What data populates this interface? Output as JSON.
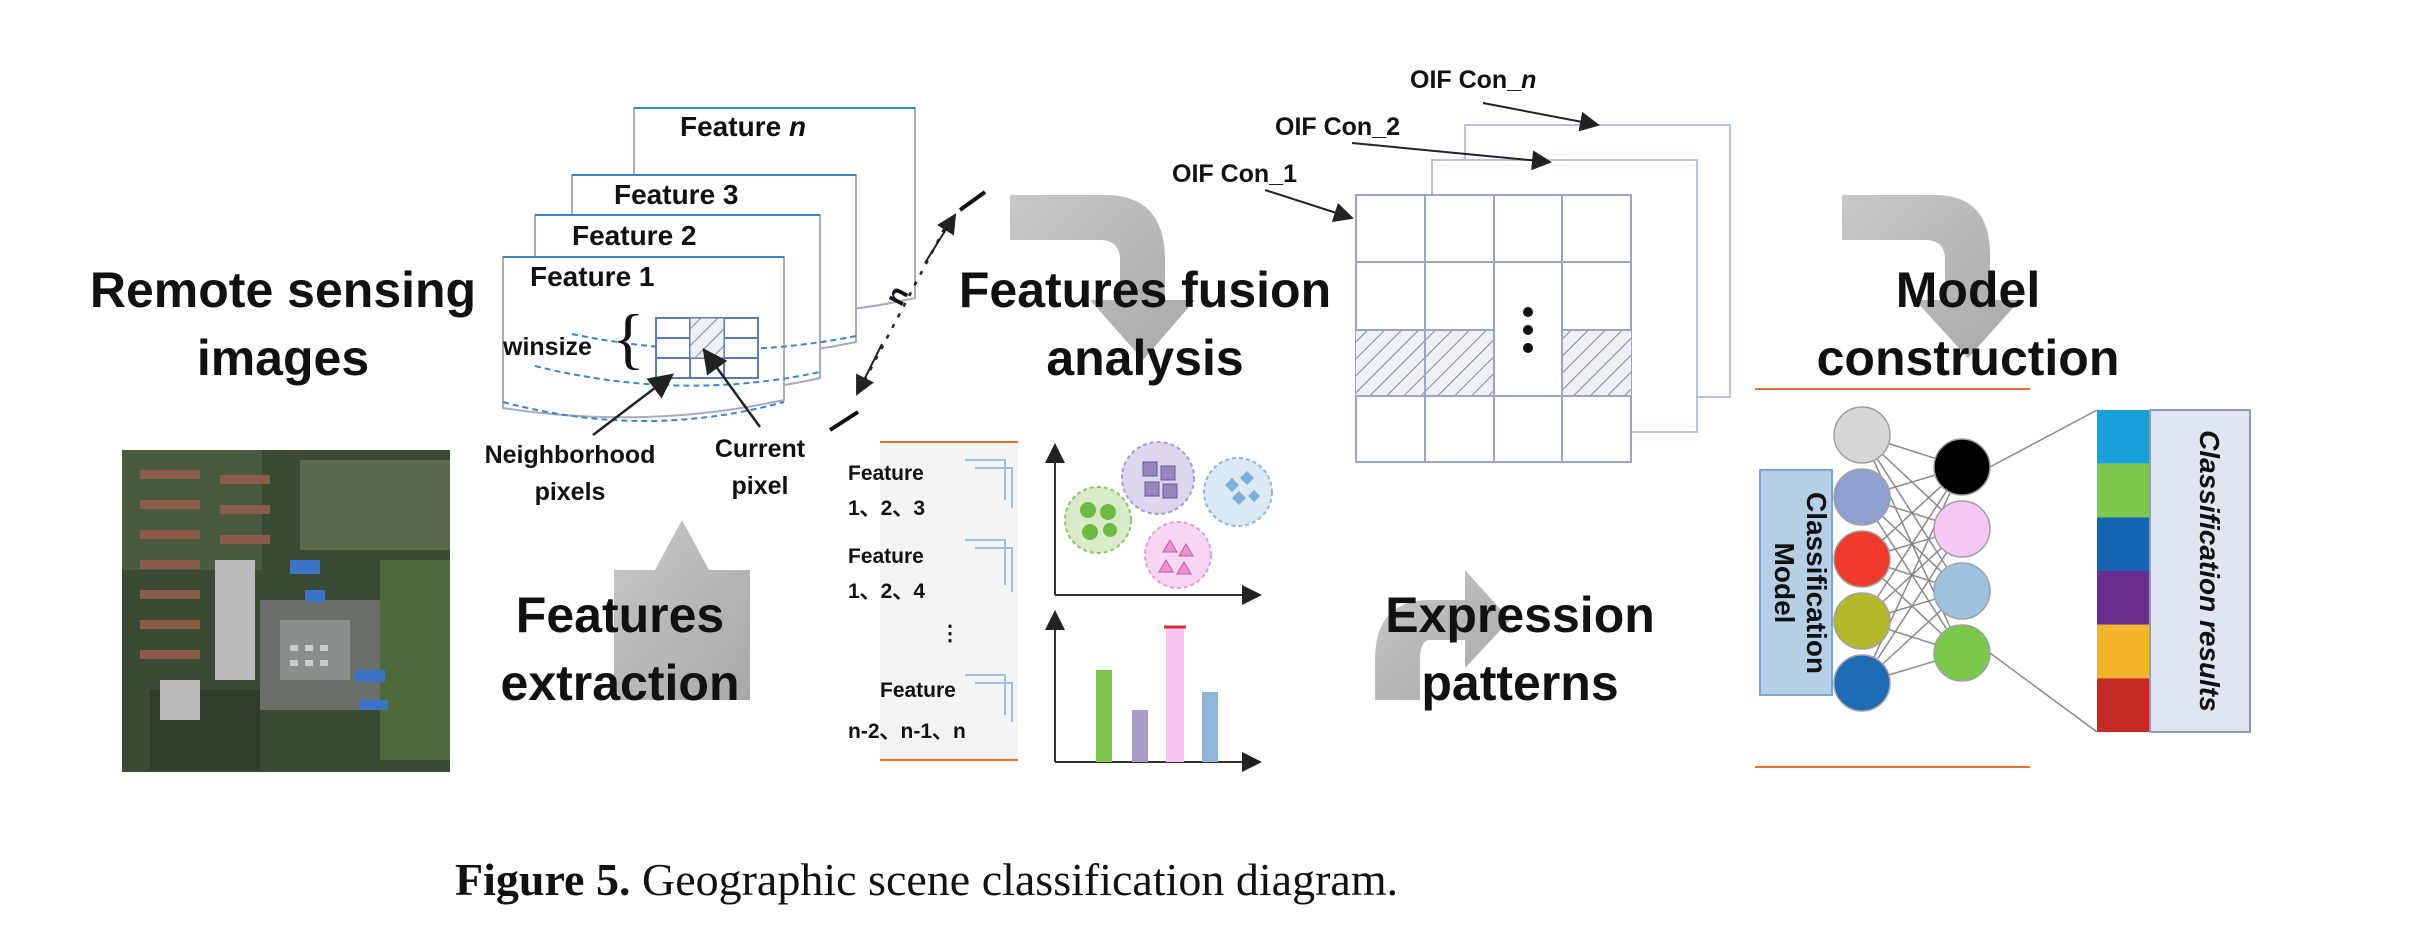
{
  "headings": {
    "remote_sensing_1": "Remote sensing",
    "remote_sensing_2": "images",
    "features_extraction_1": "Features",
    "features_extraction_2": "extraction",
    "features_fusion_1": "Features fusion",
    "features_fusion_2": "analysis",
    "expression_patterns_1": "Expression",
    "expression_patterns_2": "patterns",
    "model_construction_1": "Model",
    "model_construction_2": "construction"
  },
  "feature_stack": {
    "feature_n_prefix": "Feature ",
    "feature_n_italic": "n",
    "feature_3": "Feature 3",
    "feature_2": "Feature 2",
    "feature_1": "Feature 1",
    "winsize": "winsize",
    "neighborhood_1": "Neighborhood",
    "neighborhood_2": "pixels",
    "current_1": "Current",
    "current_2": "pixel",
    "n_label": "n"
  },
  "feature_lists": {
    "group1_title": "Feature",
    "group1_items": "1、2、3",
    "group2_title": "Feature",
    "group2_items": "1、2、4",
    "ellipsis": "⋮",
    "group3_title": "Feature",
    "group3_items": "n-2、n-1、n"
  },
  "oif": {
    "con_n_prefix": "OIF Con_",
    "con_n_italic": "n",
    "con_2": "OIF Con_2",
    "con_1": "OIF Con_1"
  },
  "model": {
    "classification_model_1": "Classification",
    "classification_model_2": "Model",
    "classification_results": "Classification results",
    "input_colors": [
      "#d6d6d6",
      "#8ea0cf",
      "#ee3b2c",
      "#b6b82c",
      "#1f6bb5"
    ],
    "output_colors": [
      "#000000",
      "#f7c6f1",
      "#9ec3e0",
      "#7cc84b"
    ],
    "result_colors": [
      "#1aa0d9",
      "#7cc84b",
      "#1466b2",
      "#6a2c8e",
      "#f1b42c",
      "#c22a22"
    ]
  },
  "caption": {
    "label": "Figure 5.",
    "text": " Geographic scene classification diagram."
  }
}
